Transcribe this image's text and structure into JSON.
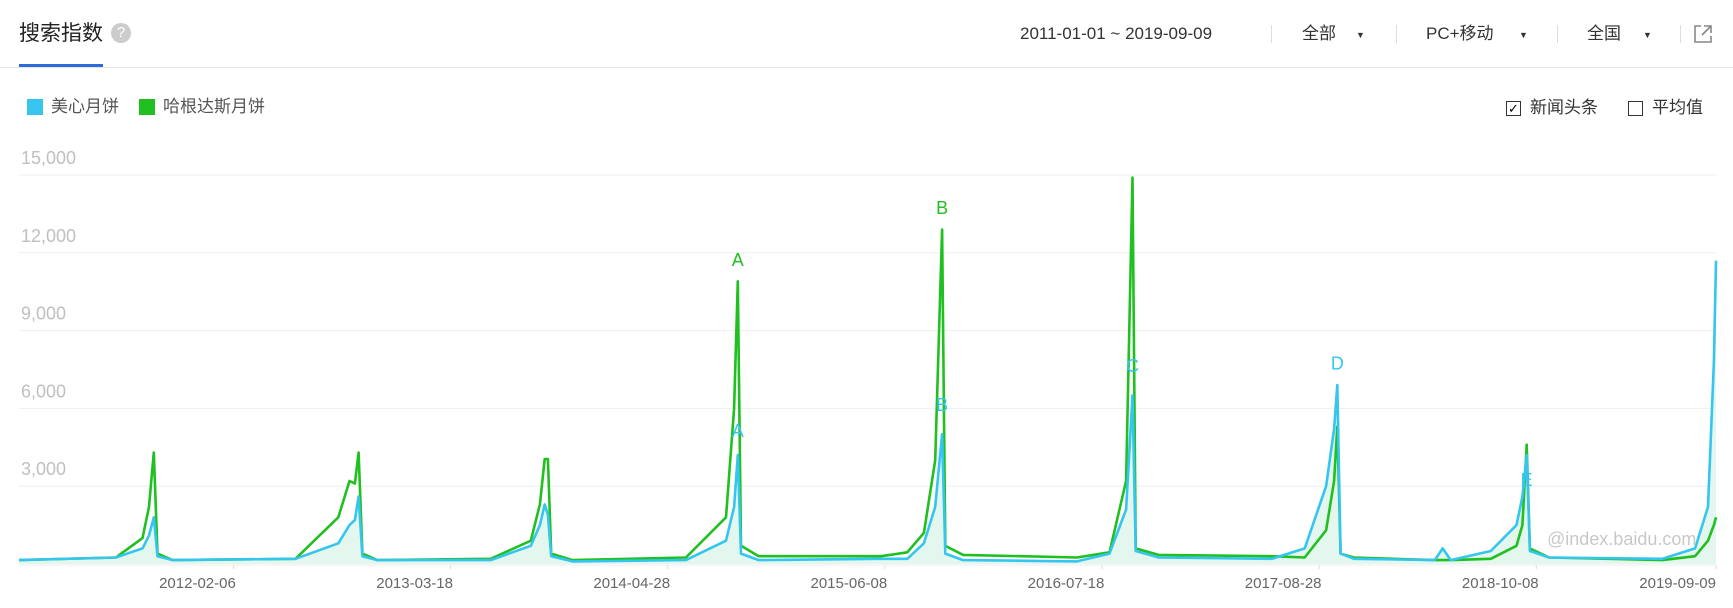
{
  "header": {
    "title": "搜索指数",
    "help": "?",
    "date_range": "2011-01-01 ~ 2019-09-09",
    "filters": [
      "全部",
      "PC+移动",
      "全国"
    ],
    "options": [
      {
        "label": "新闻头条",
        "checked": true
      },
      {
        "label": "平均值",
        "checked": false
      }
    ]
  },
  "watermark": "@index.baidu.com",
  "chart_data": {
    "type": "line",
    "x": [
      "2011-01-01",
      "2011-07-01",
      "2011-08-20",
      "2011-09-01",
      "2011-09-10",
      "2011-09-17",
      "2011-10-15",
      "2012-06-01",
      "2012-08-20",
      "2012-09-10",
      "2012-09-20",
      "2012-09-27",
      "2012-10-04",
      "2012-11-01",
      "2013-06-01",
      "2013-08-15",
      "2013-09-01",
      "2013-09-10",
      "2013-09-16",
      "2013-09-22",
      "2013-11-01",
      "2014-06-01",
      "2014-08-15",
      "2014-08-30",
      "2014-09-06",
      "2014-09-12",
      "2014-10-15",
      "2015-06-01",
      "2015-07-20",
      "2015-08-20",
      "2015-09-10",
      "2015-09-23",
      "2015-09-29",
      "2015-11-01",
      "2016-06-01",
      "2016-08-01",
      "2016-09-01",
      "2016-09-13",
      "2016-09-19",
      "2016-11-01",
      "2017-06-01",
      "2017-08-01",
      "2017-09-10",
      "2017-09-25",
      "2017-10-01",
      "2017-10-07",
      "2017-11-01",
      "2018-04-01",
      "2018-04-16",
      "2018-05-01",
      "2018-07-15",
      "2018-09-01",
      "2018-09-12",
      "2018-09-20",
      "2018-09-26",
      "2018-11-01",
      "2019-06-01",
      "2019-08-01",
      "2019-08-25",
      "2019-09-05",
      "2019-09-09"
    ],
    "series": [
      {
        "name": "美心月饼",
        "color": "#35c5ef",
        "values": [
          150,
          250,
          600,
          1100,
          1800,
          300,
          150,
          200,
          800,
          1500,
          1700,
          2600,
          300,
          150,
          150,
          700,
          1500,
          2300,
          1900,
          300,
          100,
          150,
          900,
          2200,
          4200,
          400,
          150,
          200,
          200,
          800,
          2200,
          5000,
          400,
          150,
          100,
          400,
          2100,
          6500,
          500,
          250,
          200,
          600,
          3000,
          5200,
          6900,
          400,
          200,
          150,
          600,
          150,
          500,
          1500,
          2600,
          4200,
          500,
          250,
          200,
          600,
          2200,
          7800,
          11700
        ]
      },
      {
        "name": "哈根达斯月饼",
        "color": "#1fc01f",
        "values": [
          150,
          250,
          1000,
          2200,
          4300,
          400,
          150,
          200,
          1800,
          3200,
          3100,
          4300,
          400,
          150,
          200,
          900,
          2300,
          4050,
          4050,
          400,
          150,
          250,
          1800,
          6000,
          10900,
          700,
          300,
          300,
          450,
          1200,
          4000,
          12900,
          700,
          350,
          250,
          450,
          3200,
          14900,
          600,
          350,
          300,
          250,
          1300,
          3200,
          5300,
          400,
          250,
          150,
          150,
          150,
          200,
          700,
          1500,
          4600,
          600,
          250,
          150,
          300,
          900,
          1500,
          1800
        ]
      }
    ],
    "area_fill": "#e3f7ef",
    "xlim": [
      "2011-01-01",
      "2019-09-09"
    ],
    "xticks": [
      "2012-02-06",
      "2013-03-18",
      "2014-04-28",
      "2015-06-08",
      "2016-07-18",
      "2017-08-28",
      "2018-10-08",
      "2019-09-09"
    ],
    "ylim": [
      0,
      15000
    ],
    "yticks": [
      {
        "value": 3000,
        "label": "3,000"
      },
      {
        "value": 6000,
        "label": "6,000"
      },
      {
        "value": 9000,
        "label": "9,000"
      },
      {
        "value": 12000,
        "label": "12,000"
      },
      {
        "value": 15000,
        "label": "15,000"
      }
    ],
    "grid": true,
    "annotations": [
      {
        "text": "A",
        "x": "2014-09-06",
        "y": 11500,
        "color": "#1fc01f"
      },
      {
        "text": "A",
        "x": "2014-09-06",
        "y": 4900,
        "color": "#35c5ef"
      },
      {
        "text": "B",
        "x": "2015-09-23",
        "y": 13500,
        "color": "#1fc01f"
      },
      {
        "text": "B",
        "x": "2015-09-23",
        "y": 5900,
        "color": "#35c5ef"
      },
      {
        "text": "C",
        "x": "2016-09-13",
        "y": 7400,
        "color": "#35c5ef"
      },
      {
        "text": "D",
        "x": "2017-10-01",
        "y": 7500,
        "color": "#35c5ef"
      },
      {
        "text": "E",
        "x": "2018-09-20",
        "y": 3000,
        "color": "#35c5ef"
      }
    ]
  }
}
